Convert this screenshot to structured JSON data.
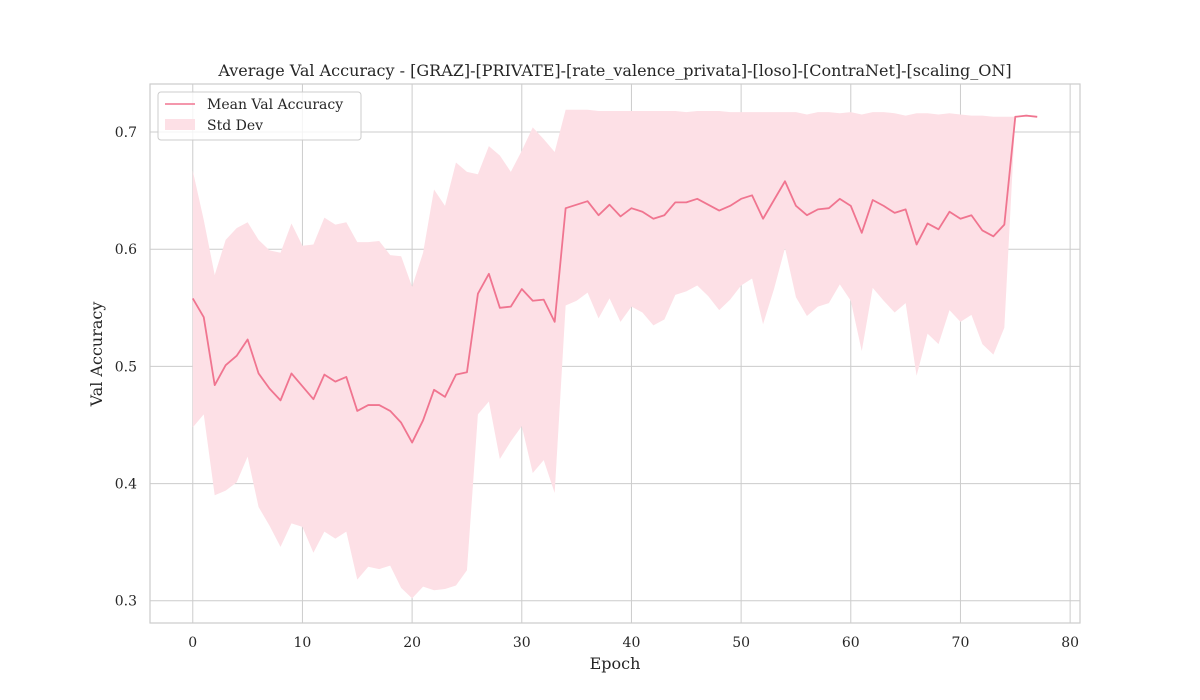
{
  "chart_data": {
    "type": "line",
    "title": "Average Val Accuracy - [GRAZ]-[PRIVATE]-[rate_valence_privata]-[loso]-[ContraNet]-[scaling_ON]",
    "xlabel": "Epoch",
    "ylabel": "Val Accuracy",
    "xlim": [
      -3.9,
      80.9
    ],
    "ylim": [
      0.281,
      0.741
    ],
    "xticks": [
      0,
      10,
      20,
      30,
      40,
      50,
      60,
      70,
      80
    ],
    "yticks": [
      0.3,
      0.4,
      0.5,
      0.6,
      0.7
    ],
    "grid": true,
    "legend_position": "top-left",
    "colors": {
      "line": "#f07590",
      "band": "#fde0e6",
      "grid": "#cccccc",
      "spine": "#cccccc"
    },
    "legend": [
      {
        "label": "Mean Val Accuracy",
        "kind": "line"
      },
      {
        "label": "Std Dev",
        "kind": "band"
      }
    ],
    "x": [
      0,
      1,
      2,
      3,
      4,
      5,
      6,
      7,
      8,
      9,
      10,
      11,
      12,
      13,
      14,
      15,
      16,
      17,
      18,
      19,
      20,
      21,
      22,
      23,
      24,
      25,
      26,
      27,
      28,
      29,
      30,
      31,
      32,
      33,
      34,
      35,
      36,
      37,
      38,
      39,
      40,
      41,
      42,
      43,
      44,
      45,
      46,
      47,
      48,
      49,
      50,
      51,
      52,
      53,
      54,
      55,
      56,
      57,
      58,
      59,
      60,
      61,
      62,
      63,
      64,
      65,
      66,
      67,
      68,
      69,
      70,
      71,
      72,
      73,
      74,
      75,
      76,
      77
    ],
    "series": [
      {
        "name": "Mean Val Accuracy",
        "values": [
          0.558,
          0.542,
          0.484,
          0.501,
          0.509,
          0.523,
          0.494,
          0.481,
          0.471,
          0.494,
          0.483,
          0.472,
          0.493,
          0.487,
          0.491,
          0.462,
          0.467,
          0.467,
          0.462,
          0.452,
          0.435,
          0.454,
          0.48,
          0.474,
          0.493,
          0.495,
          0.562,
          0.579,
          0.55,
          0.551,
          0.566,
          0.556,
          0.557,
          0.538,
          0.635,
          0.638,
          0.641,
          0.629,
          0.638,
          0.628,
          0.635,
          0.632,
          0.626,
          0.629,
          0.64,
          0.64,
          0.643,
          0.638,
          0.633,
          0.637,
          0.643,
          0.646,
          0.626,
          0.642,
          0.658,
          0.637,
          0.629,
          0.634,
          0.635,
          0.643,
          0.637,
          0.614,
          0.642,
          0.637,
          0.631,
          0.634,
          0.604,
          0.622,
          0.617,
          0.632,
          0.626,
          0.629,
          0.616,
          0.611,
          0.621,
          0.713,
          0.714,
          0.713
        ]
      },
      {
        "name": "Std Dev",
        "upper": [
          0.667,
          0.625,
          0.578,
          0.608,
          0.618,
          0.623,
          0.608,
          0.599,
          0.597,
          0.622,
          0.603,
          0.604,
          0.627,
          0.621,
          0.623,
          0.606,
          0.606,
          0.607,
          0.595,
          0.594,
          0.568,
          0.597,
          0.651,
          0.637,
          0.674,
          0.666,
          0.664,
          0.688,
          0.68,
          0.666,
          0.684,
          0.704,
          0.694,
          0.683,
          0.719,
          0.719,
          0.719,
          0.718,
          0.718,
          0.718,
          0.718,
          0.718,
          0.718,
          0.718,
          0.718,
          0.717,
          0.718,
          0.718,
          0.718,
          0.717,
          0.717,
          0.717,
          0.717,
          0.717,
          0.717,
          0.717,
          0.715,
          0.717,
          0.717,
          0.716,
          0.717,
          0.715,
          0.717,
          0.717,
          0.716,
          0.714,
          0.716,
          0.716,
          0.715,
          0.716,
          0.715,
          0.714,
          0.714,
          0.713,
          0.713,
          0.713,
          0.715,
          0.713
        ],
        "lower": [
          0.448,
          0.459,
          0.39,
          0.394,
          0.401,
          0.423,
          0.38,
          0.364,
          0.346,
          0.366,
          0.363,
          0.341,
          0.359,
          0.353,
          0.359,
          0.318,
          0.329,
          0.327,
          0.33,
          0.311,
          0.302,
          0.312,
          0.309,
          0.31,
          0.313,
          0.326,
          0.459,
          0.47,
          0.421,
          0.436,
          0.449,
          0.409,
          0.42,
          0.392,
          0.552,
          0.556,
          0.563,
          0.541,
          0.558,
          0.538,
          0.551,
          0.546,
          0.535,
          0.54,
          0.561,
          0.564,
          0.569,
          0.56,
          0.548,
          0.557,
          0.569,
          0.575,
          0.536,
          0.566,
          0.601,
          0.559,
          0.543,
          0.551,
          0.554,
          0.57,
          0.556,
          0.513,
          0.567,
          0.556,
          0.546,
          0.554,
          0.492,
          0.528,
          0.519,
          0.548,
          0.538,
          0.544,
          0.519,
          0.51,
          0.533,
          0.713,
          0.713,
          0.713
        ]
      }
    ]
  }
}
